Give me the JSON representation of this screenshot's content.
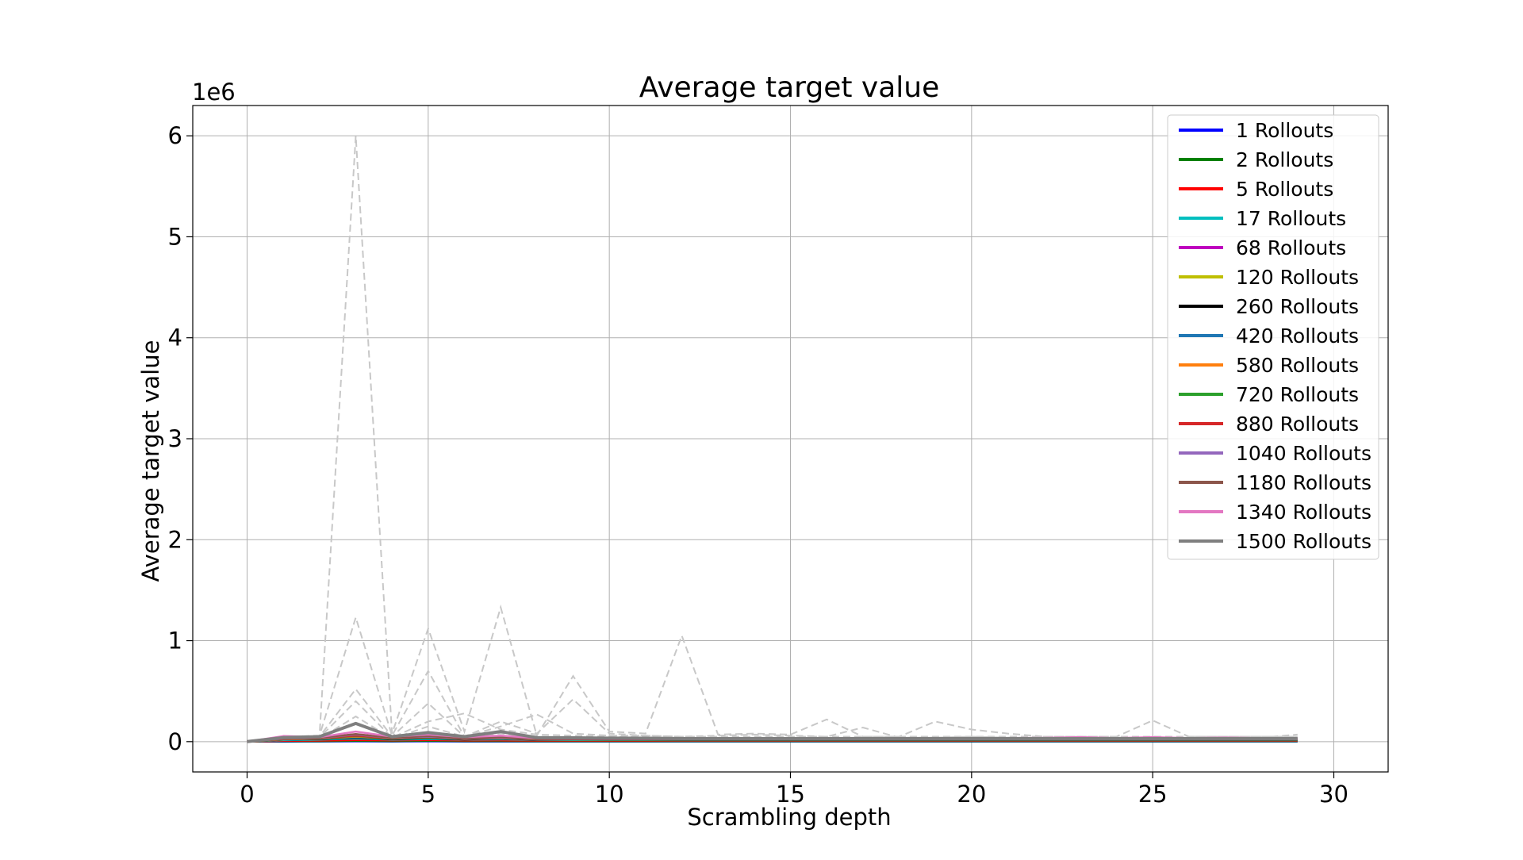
{
  "chart_data": {
    "type": "line",
    "title": "Average target value",
    "xlabel": "Scrambling depth",
    "ylabel": "Average target value",
    "y_scale_label": "1e6",
    "xlim": [
      -1.5,
      31.5
    ],
    "ylim": [
      -0.3,
      6.3
    ],
    "x_ticks": [
      0,
      5,
      10,
      15,
      20,
      25,
      30
    ],
    "y_ticks": [
      0,
      1,
      2,
      3,
      4,
      5,
      6
    ],
    "grid": true,
    "legend_position": "top-right",
    "x": [
      0,
      1,
      2,
      3,
      4,
      5,
      6,
      7,
      8,
      9,
      10,
      11,
      12,
      13,
      14,
      15,
      16,
      17,
      18,
      19,
      20,
      21,
      22,
      23,
      24,
      25,
      26,
      27,
      28,
      29
    ],
    "series": [
      {
        "name": "1 Rollouts",
        "color": "#0000ff",
        "values": [
          0,
          0.001,
          0.002,
          0.003,
          0.002,
          0.003,
          0.002,
          0.002,
          0.002,
          0.002,
          0.002,
          0.002,
          0.002,
          0.002,
          0.002,
          0.002,
          0.002,
          0.002,
          0.002,
          0.002,
          0.002,
          0.002,
          0.002,
          0.002,
          0.002,
          0.002,
          0.002,
          0.002,
          0.002,
          0.002
        ]
      },
      {
        "name": "2 Rollouts",
        "color": "#008000",
        "values": [
          0,
          0.004,
          0.005,
          0.008,
          0.006,
          0.008,
          0.006,
          0.006,
          0.005,
          0.005,
          0.005,
          0.005,
          0.005,
          0.005,
          0.005,
          0.005,
          0.005,
          0.005,
          0.005,
          0.005,
          0.005,
          0.005,
          0.005,
          0.005,
          0.005,
          0.005,
          0.005,
          0.005,
          0.005,
          0.005
        ]
      },
      {
        "name": "5 Rollouts",
        "color": "#ff0000",
        "values": [
          0,
          0.008,
          0.01,
          0.015,
          0.012,
          0.015,
          0.011,
          0.012,
          0.01,
          0.01,
          0.01,
          0.01,
          0.01,
          0.01,
          0.01,
          0.01,
          0.01,
          0.01,
          0.01,
          0.01,
          0.01,
          0.01,
          0.01,
          0.01,
          0.01,
          0.01,
          0.01,
          0.01,
          0.01,
          0.01
        ]
      },
      {
        "name": "17 Rollouts",
        "color": "#00bfbf",
        "values": [
          0,
          0.015,
          0.02,
          0.03,
          0.02,
          0.025,
          0.02,
          0.022,
          0.018,
          0.017,
          0.016,
          0.016,
          0.015,
          0.015,
          0.015,
          0.015,
          0.015,
          0.015,
          0.015,
          0.015,
          0.015,
          0.015,
          0.015,
          0.015,
          0.015,
          0.015,
          0.015,
          0.015,
          0.015,
          0.015
        ]
      },
      {
        "name": "68 Rollouts",
        "color": "#bf00bf",
        "values": [
          0,
          0.03,
          0.035,
          0.06,
          0.035,
          0.05,
          0.03,
          0.04,
          0.028,
          0.026,
          0.025,
          0.024,
          0.023,
          0.023,
          0.023,
          0.023,
          0.023,
          0.023,
          0.023,
          0.023,
          0.023,
          0.023,
          0.023,
          0.023,
          0.023,
          0.023,
          0.023,
          0.023,
          0.023,
          0.023
        ]
      },
      {
        "name": "120 Rollouts",
        "color": "#bfbf00",
        "values": [
          0,
          0.025,
          0.03,
          0.05,
          0.03,
          0.04,
          0.028,
          0.035,
          0.025,
          0.024,
          0.023,
          0.022,
          0.021,
          0.021,
          0.021,
          0.021,
          0.021,
          0.021,
          0.021,
          0.021,
          0.021,
          0.021,
          0.021,
          0.021,
          0.021,
          0.021,
          0.021,
          0.021,
          0.021,
          0.021
        ]
      },
      {
        "name": "260 Rollouts",
        "color": "#000000",
        "values": [
          0,
          0.02,
          0.025,
          0.04,
          0.025,
          0.035,
          0.022,
          0.03,
          0.02,
          0.02,
          0.019,
          0.019,
          0.018,
          0.018,
          0.018,
          0.018,
          0.018,
          0.018,
          0.018,
          0.018,
          0.018,
          0.018,
          0.018,
          0.018,
          0.018,
          0.018,
          0.018,
          0.018,
          0.018,
          0.018
        ]
      },
      {
        "name": "420 Rollouts",
        "color": "#1f77b4",
        "values": [
          0,
          0.02,
          0.028,
          0.045,
          0.03,
          0.04,
          0.025,
          0.032,
          0.022,
          0.021,
          0.02,
          0.02,
          0.019,
          0.019,
          0.019,
          0.019,
          0.019,
          0.019,
          0.019,
          0.019,
          0.019,
          0.019,
          0.019,
          0.019,
          0.019,
          0.019,
          0.019,
          0.019,
          0.019,
          0.019
        ]
      },
      {
        "name": "580 Rollouts",
        "color": "#ff7f0e",
        "values": [
          0,
          0.022,
          0.03,
          0.05,
          0.03,
          0.042,
          0.026,
          0.034,
          0.023,
          0.022,
          0.021,
          0.021,
          0.02,
          0.02,
          0.02,
          0.02,
          0.02,
          0.02,
          0.02,
          0.02,
          0.02,
          0.02,
          0.02,
          0.02,
          0.02,
          0.02,
          0.02,
          0.02,
          0.02,
          0.02
        ]
      },
      {
        "name": "720 Rollouts",
        "color": "#2ca02c",
        "values": [
          0,
          0.024,
          0.032,
          0.055,
          0.032,
          0.045,
          0.027,
          0.036,
          0.024,
          0.023,
          0.022,
          0.022,
          0.021,
          0.021,
          0.021,
          0.021,
          0.021,
          0.021,
          0.021,
          0.021,
          0.021,
          0.021,
          0.021,
          0.021,
          0.021,
          0.021,
          0.021,
          0.021,
          0.021,
          0.021
        ]
      },
      {
        "name": "880 Rollouts",
        "color": "#d62728",
        "values": [
          0,
          0.026,
          0.034,
          0.06,
          0.034,
          0.048,
          0.028,
          0.038,
          0.025,
          0.024,
          0.023,
          0.023,
          0.022,
          0.022,
          0.022,
          0.022,
          0.022,
          0.022,
          0.022,
          0.022,
          0.022,
          0.022,
          0.022,
          0.022,
          0.022,
          0.022,
          0.022,
          0.022,
          0.022,
          0.022
        ]
      },
      {
        "name": "1040 Rollouts",
        "color": "#9467bd",
        "values": [
          0,
          0.03,
          0.036,
          0.07,
          0.036,
          0.05,
          0.03,
          0.04,
          0.027,
          0.026,
          0.025,
          0.025,
          0.024,
          0.024,
          0.024,
          0.024,
          0.024,
          0.024,
          0.024,
          0.024,
          0.024,
          0.024,
          0.024,
          0.024,
          0.024,
          0.024,
          0.024,
          0.024,
          0.024,
          0.024
        ]
      },
      {
        "name": "1180 Rollouts",
        "color": "#8c564b",
        "values": [
          0,
          0.032,
          0.038,
          0.075,
          0.038,
          0.055,
          0.032,
          0.045,
          0.028,
          0.027,
          0.026,
          0.026,
          0.025,
          0.025,
          0.025,
          0.025,
          0.025,
          0.025,
          0.025,
          0.025,
          0.025,
          0.025,
          0.025,
          0.025,
          0.025,
          0.025,
          0.025,
          0.025,
          0.025,
          0.025
        ]
      },
      {
        "name": "1340 Rollouts",
        "color": "#e377c2",
        "values": [
          0,
          0.055,
          0.045,
          0.1,
          0.05,
          0.07,
          0.045,
          0.06,
          0.035,
          0.034,
          0.032,
          0.031,
          0.03,
          0.03,
          0.031,
          0.032,
          0.033,
          0.034,
          0.033,
          0.034,
          0.035,
          0.036,
          0.037,
          0.045,
          0.035,
          0.045,
          0.035,
          0.04,
          0.035,
          0.03
        ]
      },
      {
        "name": "1500 Rollouts",
        "color": "#7f7f7f",
        "values": [
          0,
          0.04,
          0.05,
          0.18,
          0.05,
          0.09,
          0.05,
          0.1,
          0.04,
          0.038,
          0.035,
          0.034,
          0.03,
          0.03,
          0.03,
          0.03,
          0.03,
          0.03,
          0.03,
          0.03,
          0.03,
          0.03,
          0.03,
          0.03,
          0.03,
          0.03,
          0.03,
          0.03,
          0.03,
          0.03
        ]
      }
    ],
    "background_series": [
      {
        "values": [
          0,
          0.05,
          0.06,
          6.0,
          0.08,
          1.12,
          0.1,
          1.33,
          0.06,
          0.65,
          0.1,
          0.08,
          1.05,
          0.07,
          0.08,
          0.07,
          0.22,
          0.05,
          0.05,
          0.2,
          0.12,
          0.08,
          0.05,
          0.05,
          0.05,
          0.21,
          0.05,
          0.05,
          0.05,
          0.05
        ]
      },
      {
        "values": [
          0,
          0.04,
          0.06,
          1.23,
          0.06,
          0.7,
          0.05,
          0.2,
          0.08,
          0.42,
          0.08,
          0.06,
          0.05,
          0.06,
          0.07,
          0.06,
          0.05,
          0.14,
          0.04,
          0.04,
          0.05,
          0.04,
          0.04,
          0.04,
          0.04,
          0.04,
          0.04,
          0.04,
          0.04,
          0.07
        ]
      },
      {
        "values": [
          0,
          0.03,
          0.05,
          0.52,
          0.05,
          0.38,
          0.05,
          0.15,
          0.27,
          0.08,
          0.06,
          0.06,
          0.05,
          0.05,
          0.05,
          0.05,
          0.05,
          0.05,
          0.05,
          0.05,
          0.05,
          0.05,
          0.05,
          0.05,
          0.05,
          0.05,
          0.05,
          0.05,
          0.05,
          0.05
        ]
      },
      {
        "values": [
          0,
          0.03,
          0.04,
          0.4,
          0.04,
          0.2,
          0.28,
          0.12,
          0.07,
          0.06,
          0.05,
          0.05,
          0.04,
          0.04,
          0.04,
          0.04,
          0.04,
          0.04,
          0.04,
          0.04,
          0.04,
          0.04,
          0.04,
          0.04,
          0.04,
          0.04,
          0.04,
          0.04,
          0.04,
          0.04
        ]
      },
      {
        "values": [
          0,
          0.02,
          0.03,
          0.25,
          0.03,
          0.15,
          0.05,
          0.08,
          0.05,
          0.04,
          0.04,
          0.04,
          0.03,
          0.03,
          0.03,
          0.03,
          0.03,
          0.03,
          0.03,
          0.03,
          0.03,
          0.03,
          0.03,
          0.03,
          0.03,
          0.03,
          0.03,
          0.03,
          0.03,
          0.03
        ]
      }
    ]
  }
}
